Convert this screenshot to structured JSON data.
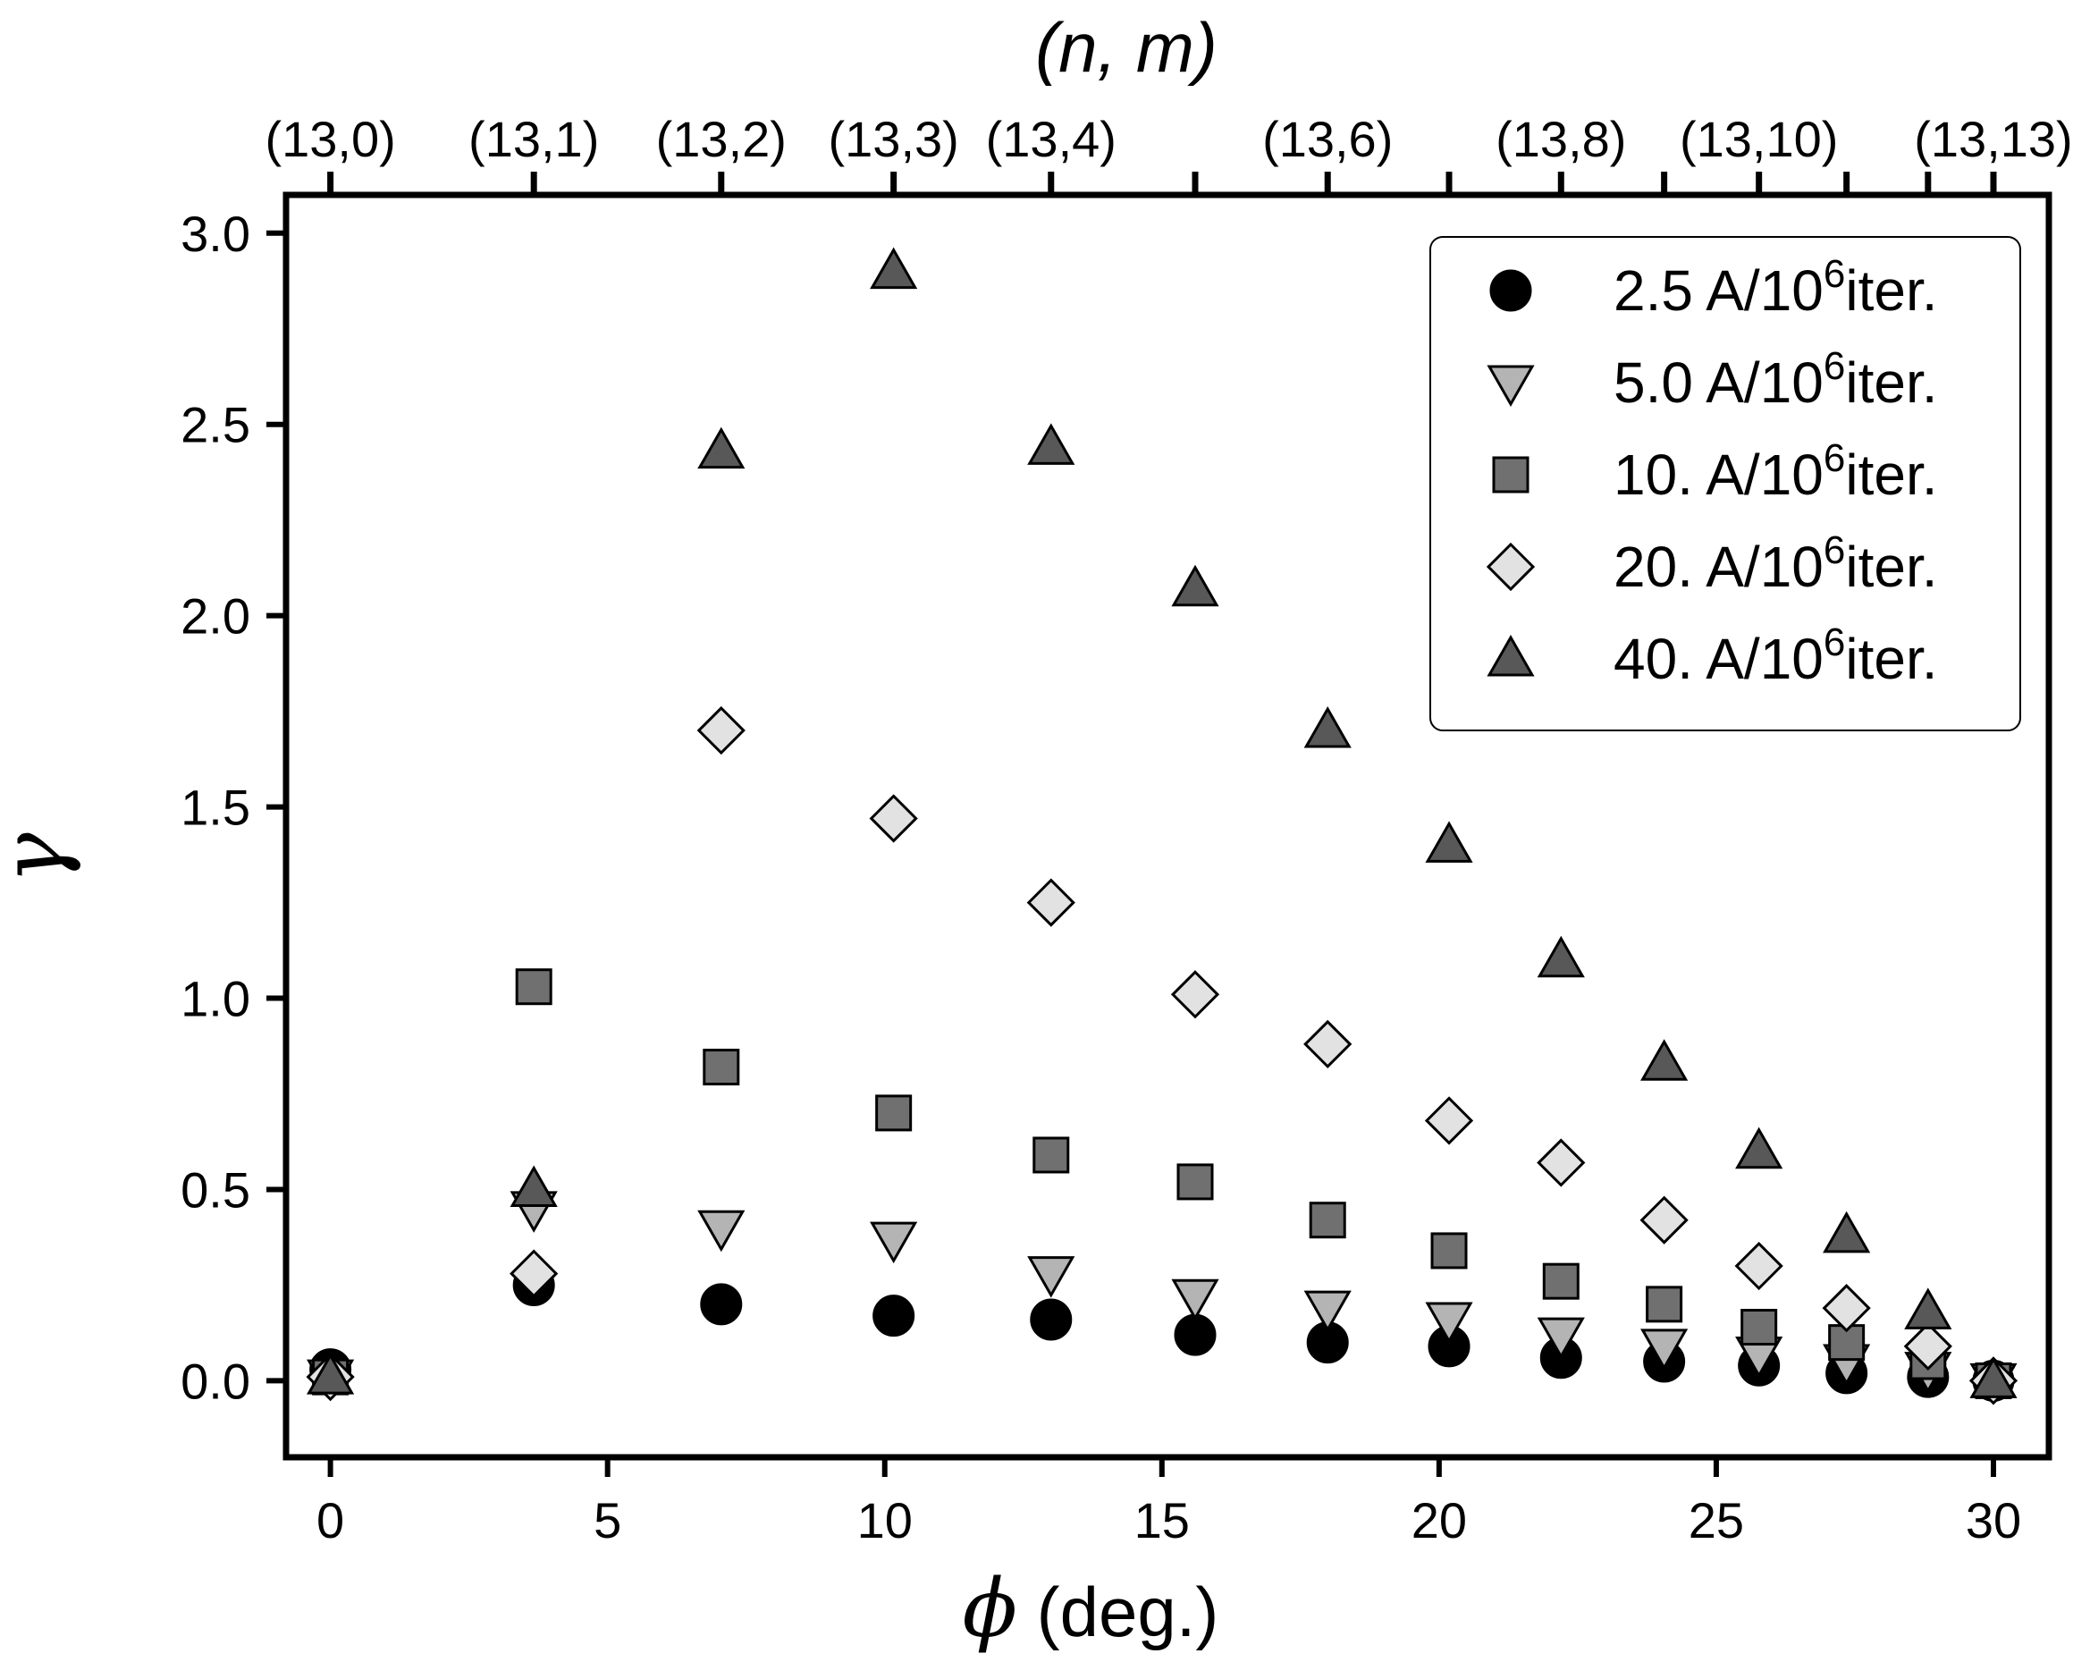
{
  "chart_data": {
    "type": "scatter",
    "title": "",
    "xlabel": {
      "symbol": "ϕ",
      "text": " (deg.)"
    },
    "ylabel": {
      "symbol": "γ"
    },
    "top_axis_title": "(n, m)",
    "xlim": [
      -0.8,
      31.0
    ],
    "ylim": [
      -0.2,
      3.1
    ],
    "x_ticks": [
      0,
      5,
      10,
      15,
      20,
      25,
      30
    ],
    "x_tick_labels": [
      "0",
      "5",
      "10",
      "15",
      "20",
      "25",
      "30"
    ],
    "y_ticks": [
      0.0,
      0.5,
      1.0,
      1.5,
      2.0,
      2.5,
      3.0
    ],
    "y_tick_labels": [
      "0.0",
      "0.5",
      "1.0",
      "1.5",
      "2.0",
      "2.5",
      "3.0"
    ],
    "top_ticks": [
      0,
      3.67,
      7.05,
      10.16,
      13.0,
      15.6,
      17.99,
      20.18,
      22.2,
      24.06,
      25.77,
      27.35,
      28.82,
      30.0
    ],
    "top_tick_labels": [
      {
        "x": 0,
        "label": "(13,0)"
      },
      {
        "x": 3.67,
        "label": "(13,1)"
      },
      {
        "x": 7.05,
        "label": "(13,2)"
      },
      {
        "x": 10.16,
        "label": "(13,3)"
      },
      {
        "x": 13.0,
        "label": "(13,4)"
      },
      {
        "x": 17.99,
        "label": "(13,6)"
      },
      {
        "x": 22.2,
        "label": "(13,8)"
      },
      {
        "x": 25.77,
        "label": "(13,10)"
      },
      {
        "x": 30.0,
        "label": "(13,13)"
      }
    ],
    "x": [
      0,
      3.67,
      7.05,
      10.16,
      13.0,
      15.6,
      17.99,
      20.18,
      22.2,
      24.06,
      25.77,
      27.35,
      28.82,
      30.0
    ],
    "series": [
      {
        "name": "2.5 A/10^6 iter.",
        "label_main": "2.5 A/10",
        "label_sup": "6",
        "label_tail": "iter.",
        "marker": "circle",
        "fill": "#000000",
        "values": [
          0.03,
          0.25,
          0.2,
          0.17,
          0.16,
          0.12,
          0.1,
          0.09,
          0.06,
          0.05,
          0.04,
          0.02,
          0.01,
          0.0
        ]
      },
      {
        "name": "5.0 A/10^6 iter.",
        "label_main": "5.0 A/10",
        "label_sup": "6",
        "label_tail": "iter.",
        "marker": "triangle-down",
        "fill": "#b4b4b4",
        "values": [
          0.01,
          0.45,
          0.4,
          0.37,
          0.28,
          0.22,
          0.19,
          0.16,
          0.12,
          0.09,
          0.07,
          0.05,
          0.03,
          0.0
        ]
      },
      {
        "name": "10. A/10^6 iter.",
        "label_main": "10. A/10",
        "label_sup": "6",
        "label_tail": "iter.",
        "marker": "square",
        "fill": "#707070",
        "values": [
          0.01,
          1.03,
          0.82,
          0.7,
          0.59,
          0.52,
          0.42,
          0.34,
          0.26,
          0.2,
          0.14,
          0.1,
          0.05,
          0.0
        ]
      },
      {
        "name": "20. A/10^6 iter.",
        "label_main": "20. A/10",
        "label_sup": "6",
        "label_tail": "iter.",
        "marker": "diamond",
        "fill": "#e2e2e2",
        "values": [
          0.01,
          0.28,
          1.7,
          1.47,
          1.25,
          1.01,
          0.88,
          0.68,
          0.57,
          0.42,
          0.3,
          0.19,
          0.09,
          0.0
        ]
      },
      {
        "name": "40. A/10^6 iter.",
        "label_main": "40. A/10",
        "label_sup": "6",
        "label_tail": "iter.",
        "marker": "triangle-up",
        "fill": "#585858",
        "values": [
          0.01,
          0.5,
          2.43,
          2.9,
          2.44,
          2.07,
          1.7,
          1.4,
          1.1,
          0.83,
          0.6,
          0.38,
          0.18,
          0.0
        ]
      }
    ],
    "legend": {
      "position": "top-right"
    },
    "grid": false
  }
}
